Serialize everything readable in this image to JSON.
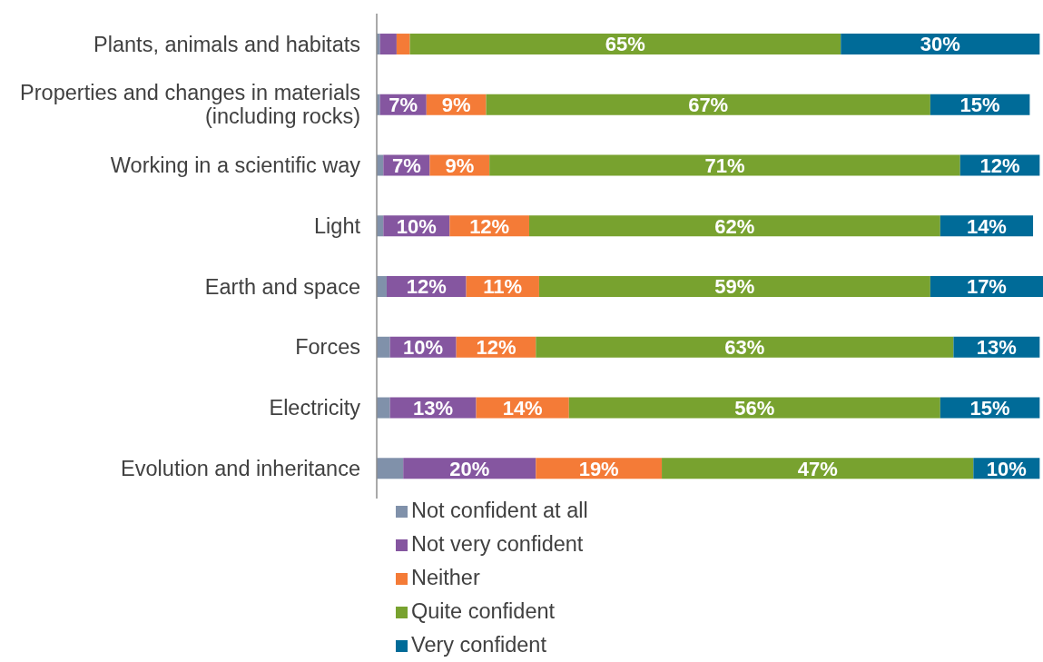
{
  "chart_data": {
    "type": "bar",
    "orientation": "horizontal",
    "stacked": true,
    "categories": [
      "Plants, animals and habitats",
      "Properties and changes in materials (including rocks)",
      "Working in a scientific way",
      "Light",
      "Earth and space",
      "Forces",
      "Electricity",
      "Evolution and inheritance"
    ],
    "series": [
      {
        "name": "Not confident at all",
        "color": "#8091aa",
        "values": [
          0.5,
          0.5,
          1,
          1,
          1.5,
          2,
          2,
          4
        ],
        "value_labels": [
          null,
          null,
          null,
          null,
          null,
          null,
          null,
          null
        ]
      },
      {
        "name": "Not very confident",
        "color": "#8556a0",
        "values": [
          2.5,
          7,
          7,
          10,
          12,
          10,
          13,
          20
        ],
        "value_labels": [
          null,
          "7%",
          "7%",
          "10%",
          "12%",
          "10%",
          "13%",
          "20%"
        ]
      },
      {
        "name": "Neither",
        "color": "#f47b37",
        "values": [
          2,
          9,
          9,
          12,
          11,
          12,
          14,
          19
        ],
        "value_labels": [
          null,
          "9%",
          "9%",
          "12%",
          "11%",
          "12%",
          "14%",
          "19%"
        ]
      },
      {
        "name": "Quite confident",
        "color": "#78a22f",
        "values": [
          65,
          67,
          71,
          62,
          59,
          63,
          56,
          47
        ],
        "value_labels": [
          "65%",
          "67%",
          "71%",
          "62%",
          "59%",
          "63%",
          "56%",
          "47%"
        ]
      },
      {
        "name": "Very confident",
        "color": "#006b98",
        "values": [
          30,
          15,
          12,
          14,
          17,
          13,
          15,
          10
        ],
        "value_labels": [
          "30%",
          "15%",
          "12%",
          "14%",
          "17%",
          "13%",
          "15%",
          "10%"
        ]
      }
    ],
    "tick_labels": "y",
    "legend": "bottom"
  }
}
